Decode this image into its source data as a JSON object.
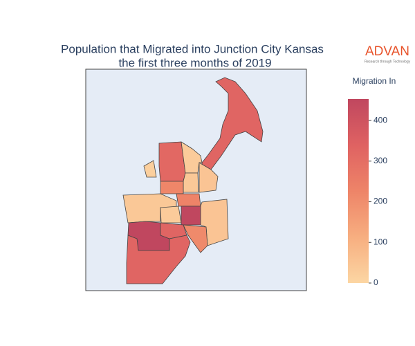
{
  "chart_data": {
    "type": "choropleth",
    "title": "Population that Migrated into Junction City Kansas",
    "subtitle": "the first three months of 2019",
    "logo": {
      "name": "ADVAN",
      "tagline": "Research through Technology",
      "color": "#e8542c"
    },
    "values": [
      330,
      320,
      20,
      30,
      40,
      50,
      220,
      40,
      230,
      30,
      50,
      460,
      460,
      330,
      210,
      330
    ],
    "colorbar": {
      "title": "Migration In",
      "zlim": [
        0,
        453
      ],
      "ticks": [
        0,
        100,
        200,
        300,
        400
      ],
      "colorscale": [
        "#fcd6a3",
        "#f7ae80",
        "#ee8468",
        "#df6262",
        "#c0475f"
      ]
    },
    "background": "#e5ecf6"
  }
}
